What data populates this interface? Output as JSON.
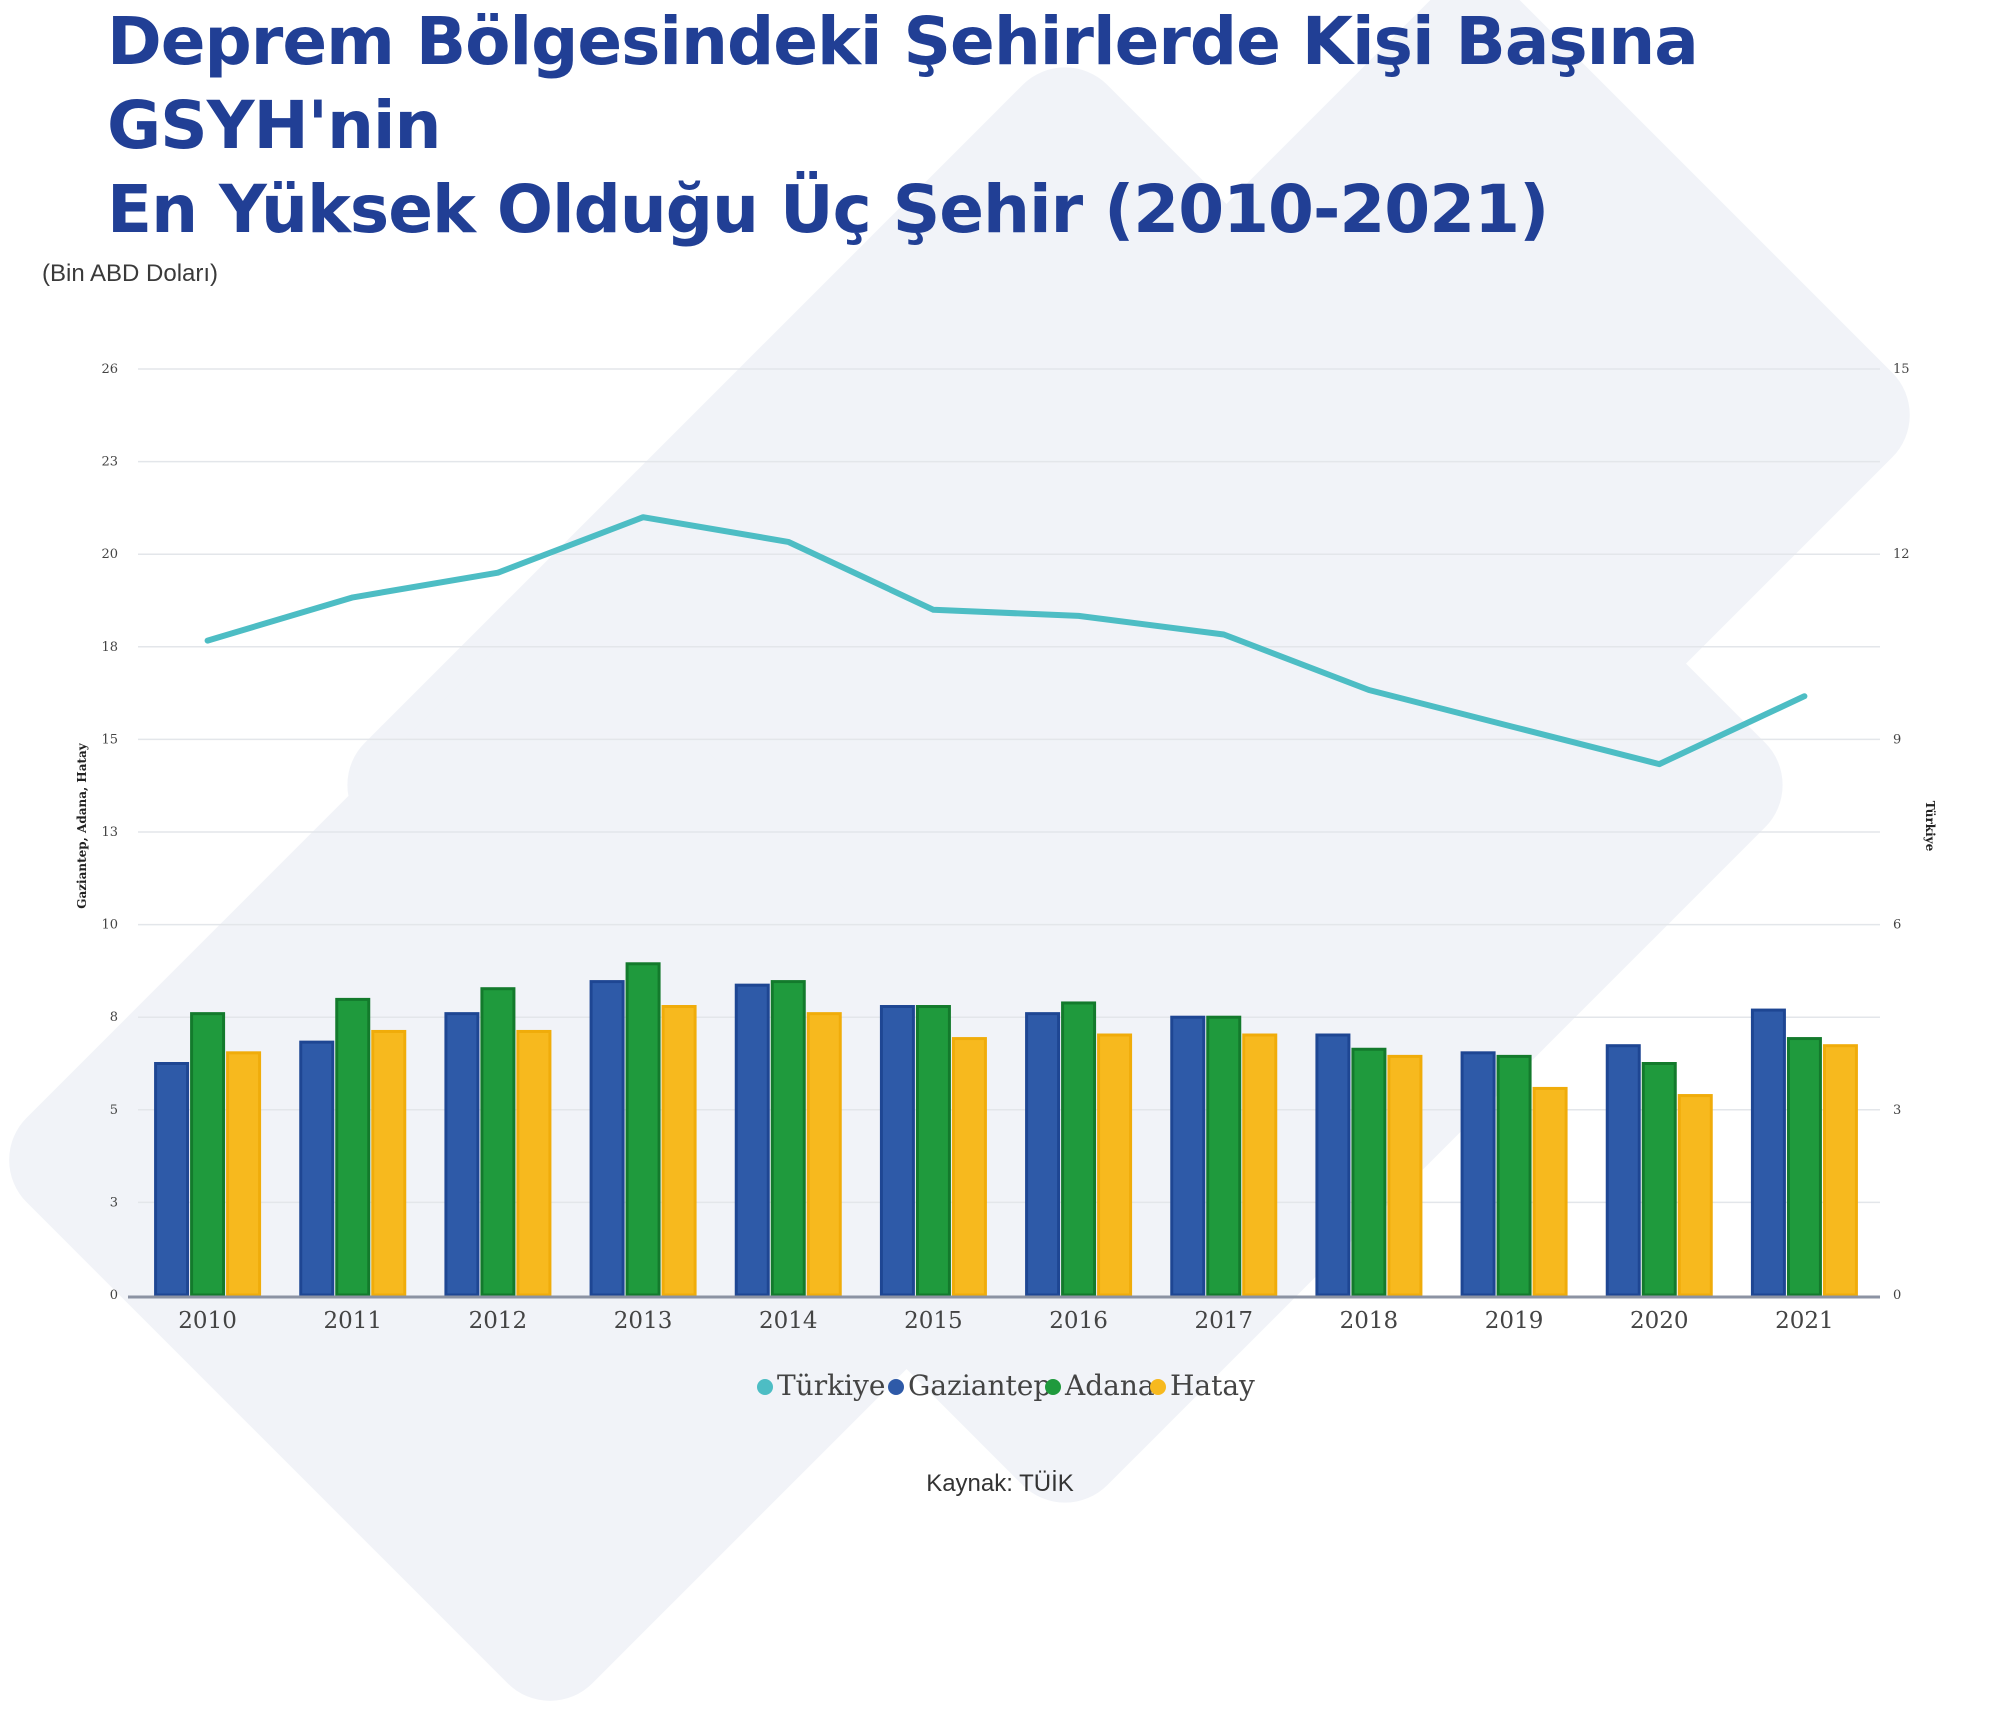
{
  "title": {
    "line1": "Deprem Bölgesindeki Şehirlerde Kişi Başına GSYH'nin",
    "line2": "En Yüksek Olduğu Üç Şehir (2010-2021)"
  },
  "unit_label": "(Bin ABD Doları)",
  "source": "Kaynak: TÜİK",
  "colors": {
    "title": "#213f95",
    "turkiye": "#4dbdc4",
    "gaziantep": "#2e5aa8",
    "adana": "#1f9a3d",
    "hatay": "#f7b91e"
  },
  "chart_data": {
    "type": "bar+line",
    "categories": [
      "2010",
      "2011",
      "2012",
      "2013",
      "2014",
      "2015",
      "2016",
      "2017",
      "2018",
      "2019",
      "2020",
      "2021"
    ],
    "left_axis": {
      "label": "Gaziantep, Adana, Hatay",
      "ticks": [
        "0",
        "3",
        "5",
        "8",
        "10",
        "13",
        "15",
        "18",
        "20",
        "23",
        "26"
      ],
      "ylim": [
        0,
        26
      ]
    },
    "right_axis": {
      "label": "Türkiye",
      "ticks": [
        "0",
        "3",
        "6",
        "9",
        "12",
        "15"
      ],
      "ylim": [
        0,
        15
      ]
    },
    "series": [
      {
        "name": "Gaziantep",
        "type": "bar",
        "axis": "left",
        "color": "#2e5aa8",
        "values": [
          6.5,
          7.1,
          7.9,
          8.8,
          8.7,
          8.1,
          7.9,
          7.8,
          7.3,
          6.8,
          7.0,
          8.0
        ]
      },
      {
        "name": "Adana",
        "type": "bar",
        "axis": "left",
        "color": "#1f9a3d",
        "values": [
          7.9,
          8.3,
          8.6,
          9.3,
          8.8,
          8.1,
          8.2,
          7.8,
          6.9,
          6.7,
          6.5,
          7.2
        ]
      },
      {
        "name": "Hatay",
        "type": "bar",
        "axis": "left",
        "color": "#f7b91e",
        "values": [
          6.8,
          7.4,
          7.4,
          8.1,
          7.9,
          7.2,
          7.3,
          7.3,
          6.7,
          5.8,
          5.6,
          7.0
        ]
      },
      {
        "name": "Türkiye",
        "type": "line",
        "axis": "right",
        "color": "#4dbdc4",
        "values": [
          10.6,
          11.3,
          11.7,
          12.6,
          12.2,
          11.1,
          11.0,
          10.7,
          9.8,
          9.2,
          8.6,
          9.7
        ]
      }
    ],
    "legend": [
      "Türkiye",
      "Gaziantep",
      "Adana",
      "Hatay"
    ],
    "legend_position": "bottom",
    "grid": true
  }
}
